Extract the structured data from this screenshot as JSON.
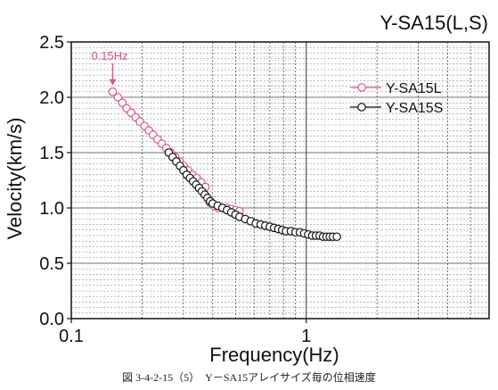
{
  "chart_data": {
    "type": "scatter",
    "title": "Y-SA15(L,S)",
    "xlabel": "Frequency(Hz)",
    "ylabel": "Velocity(km/s)",
    "xscale": "log",
    "xlim": [
      0.1,
      6
    ],
    "ylim": [
      0.0,
      2.5
    ],
    "x_ticks": [
      0.1,
      1
    ],
    "x_tick_labels": [
      "0.1",
      "1"
    ],
    "y_ticks": [
      0.0,
      0.5,
      1.0,
      1.5,
      2.0,
      2.5
    ],
    "y_tick_labels": [
      "0.0",
      "0.5",
      "1.0",
      "1.5",
      "2.0",
      "2.5"
    ],
    "grid": true,
    "legend": "top-right",
    "annotation": {
      "text": "0.15Hz",
      "x": 0.15,
      "y": 2.05,
      "color": "#e0557a"
    },
    "series": [
      {
        "name": "Y-SA15L",
        "color": "#e0557a",
        "marker": "open-circle",
        "x": [
          0.15,
          0.158,
          0.165,
          0.172,
          0.18,
          0.188,
          0.196,
          0.205,
          0.214,
          0.223,
          0.233,
          0.243,
          0.254,
          0.265,
          0.277,
          0.289,
          0.301,
          0.314,
          0.328,
          0.342,
          0.357,
          0.372,
          0.388,
          0.405,
          0.422,
          0.44,
          0.459,
          0.479,
          0.5,
          0.52
        ],
        "y": [
          2.05,
          2.0,
          1.95,
          1.9,
          1.86,
          1.82,
          1.78,
          1.74,
          1.7,
          1.66,
          1.62,
          1.58,
          1.54,
          1.5,
          1.46,
          1.42,
          1.38,
          1.34,
          1.3,
          1.27,
          1.23,
          1.19,
          1.05,
          1.02,
          1.0,
          1.0,
          1.0,
          0.99,
          0.98,
          0.97
        ]
      },
      {
        "name": "Y-SA15S",
        "color": "#111111",
        "marker": "open-circle",
        "x": [
          0.26,
          0.27,
          0.28,
          0.29,
          0.3,
          0.31,
          0.32,
          0.33,
          0.34,
          0.35,
          0.36,
          0.37,
          0.38,
          0.39,
          0.4,
          0.42,
          0.44,
          0.46,
          0.48,
          0.5,
          0.52,
          0.55,
          0.58,
          0.61,
          0.64,
          0.67,
          0.7,
          0.73,
          0.76,
          0.79,
          0.82,
          0.86,
          0.9,
          0.94,
          0.98,
          1.02,
          1.06,
          1.1,
          1.14,
          1.18,
          1.22,
          1.26,
          1.3,
          1.35
        ],
        "y": [
          1.5,
          1.46,
          1.42,
          1.38,
          1.34,
          1.3,
          1.27,
          1.24,
          1.21,
          1.18,
          1.15,
          1.12,
          1.09,
          1.06,
          1.04,
          1.02,
          1.0,
          0.98,
          0.96,
          0.94,
          0.92,
          0.9,
          0.88,
          0.86,
          0.85,
          0.84,
          0.83,
          0.82,
          0.81,
          0.8,
          0.79,
          0.79,
          0.78,
          0.78,
          0.77,
          0.76,
          0.75,
          0.75,
          0.75,
          0.74,
          0.74,
          0.74,
          0.74,
          0.74
        ]
      }
    ]
  },
  "caption": "図 3-4-2-15（5）　Y－SA15アレイサイズ毎の位相速度"
}
